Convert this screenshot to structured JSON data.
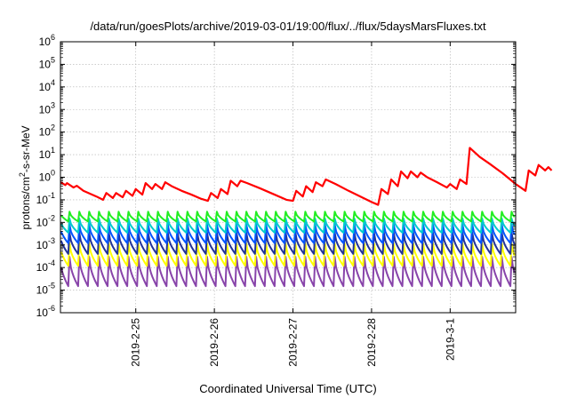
{
  "chart_data": {
    "type": "line",
    "title": "/data/run/goesPlots/archive/2019-03-01/19:00/flux/../flux/5daysMarsFluxes.txt",
    "xlabel": "Coordinated Universal Time (UTC)",
    "ylabel": {
      "prefix": "protons/cm",
      "superscript": "2",
      "suffix": "-s-sr-MeV"
    },
    "yscale": "log",
    "ylim": [
      1e-06,
      1000000.0
    ],
    "y_ticks": [
      {
        "base": "10",
        "exp": "-6",
        "value": 1e-06
      },
      {
        "base": "10",
        "exp": "-5",
        "value": 1e-05
      },
      {
        "base": "10",
        "exp": "-4",
        "value": 0.0001
      },
      {
        "base": "10",
        "exp": "-3",
        "value": 0.001
      },
      {
        "base": "10",
        "exp": "-2",
        "value": 0.01
      },
      {
        "base": "10",
        "exp": "-1",
        "value": 0.1
      },
      {
        "base": "10",
        "exp": "0",
        "value": 1
      },
      {
        "base": "10",
        "exp": "1",
        "value": 10
      },
      {
        "base": "10",
        "exp": "2",
        "value": 100
      },
      {
        "base": "10",
        "exp": "3",
        "value": 1000
      },
      {
        "base": "10",
        "exp": "4",
        "value": 10000
      },
      {
        "base": "10",
        "exp": "5",
        "value": 100000
      },
      {
        "base": "10",
        "exp": "6",
        "value": 1000000
      }
    ],
    "x_range_days": [
      "2019-02-24 01:00",
      "2019-03-01 20:00"
    ],
    "x_ticks": [
      "2019-2-25",
      "2019-2-26",
      "2019-2-27",
      "2019-2-28",
      "2019-3-1"
    ],
    "grid": true,
    "series": [
      {
        "color": "#ff0000",
        "points": [
          [
            "2019-02-24 01:00",
            0.6
          ],
          [
            "2019-02-24 02:30",
            0.45
          ],
          [
            "2019-02-24 03:00",
            0.55
          ],
          [
            "2019-02-24 05:00",
            0.35
          ],
          [
            "2019-02-24 06:00",
            0.42
          ],
          [
            "2019-02-24 08:00",
            0.25
          ],
          [
            "2019-02-24 12:00",
            0.14
          ],
          [
            "2019-02-24 14:00",
            0.1
          ],
          [
            "2019-02-24 15:00",
            0.2
          ],
          [
            "2019-02-24 17:00",
            0.12
          ],
          [
            "2019-02-24 18:00",
            0.2
          ],
          [
            "2019-02-24 20:00",
            0.13
          ],
          [
            "2019-02-24 21:00",
            0.25
          ],
          [
            "2019-02-24 23:00",
            0.15
          ],
          [
            "2019-02-25 00:00",
            0.3
          ],
          [
            "2019-02-25 02:00",
            0.17
          ],
          [
            "2019-02-25 03:00",
            0.55
          ],
          [
            "2019-02-25 05:00",
            0.3
          ],
          [
            "2019-02-25 06:00",
            0.5
          ],
          [
            "2019-02-25 08:00",
            0.3
          ],
          [
            "2019-02-25 09:00",
            0.6
          ],
          [
            "2019-02-25 11:00",
            0.4
          ],
          [
            "2019-02-25 14:00",
            0.25
          ],
          [
            "2019-02-25 17:00",
            0.17
          ],
          [
            "2019-02-25 20:00",
            0.11
          ],
          [
            "2019-02-25 22:00",
            0.09
          ],
          [
            "2019-02-25 23:00",
            0.2
          ],
          [
            "2019-02-26 01:00",
            0.12
          ],
          [
            "2019-02-26 02:00",
            0.3
          ],
          [
            "2019-02-26 04:00",
            0.18
          ],
          [
            "2019-02-26 05:00",
            0.7
          ],
          [
            "2019-02-26 07:00",
            0.4
          ],
          [
            "2019-02-26 08:00",
            0.7
          ],
          [
            "2019-02-26 10:00",
            0.55
          ],
          [
            "2019-02-26 14:00",
            0.32
          ],
          [
            "2019-02-26 18:00",
            0.18
          ],
          [
            "2019-02-26 22:00",
            0.1
          ],
          [
            "2019-02-27 00:00",
            0.09
          ],
          [
            "2019-02-27 01:00",
            0.25
          ],
          [
            "2019-02-27 03:00",
            0.14
          ],
          [
            "2019-02-27 04:00",
            0.4
          ],
          [
            "2019-02-27 06:00",
            0.22
          ],
          [
            "2019-02-27 07:00",
            0.6
          ],
          [
            "2019-02-27 09:00",
            0.4
          ],
          [
            "2019-02-27 10:00",
            0.8
          ],
          [
            "2019-02-27 13:00",
            0.5
          ],
          [
            "2019-02-27 17:00",
            0.25
          ],
          [
            "2019-02-27 21:00",
            0.13
          ],
          [
            "2019-02-28 00:00",
            0.08
          ],
          [
            "2019-02-28 02:00",
            0.06
          ],
          [
            "2019-02-28 03:00",
            0.3
          ],
          [
            "2019-02-28 05:00",
            0.18
          ],
          [
            "2019-02-28 06:00",
            0.8
          ],
          [
            "2019-02-28 08:00",
            0.4
          ],
          [
            "2019-02-28 09:00",
            1.8
          ],
          [
            "2019-02-28 11:00",
            0.9
          ],
          [
            "2019-02-28 12:00",
            1.8
          ],
          [
            "2019-02-28 14:00",
            1.0
          ],
          [
            "2019-02-28 15:00",
            1.6
          ],
          [
            "2019-02-28 17:00",
            1.0
          ],
          [
            "2019-02-28 20:00",
            0.6
          ],
          [
            "2019-02-28 23:00",
            0.35
          ],
          [
            "2019-03-01 00:00",
            0.5
          ],
          [
            "2019-03-01 02:00",
            0.3
          ],
          [
            "2019-03-01 03:00",
            0.8
          ],
          [
            "2019-03-01 05:00",
            0.5
          ],
          [
            "2019-03-01 06:00",
            20.0
          ],
          [
            "2019-03-01 09:00",
            8.0
          ],
          [
            "2019-03-01 12:00",
            4.0
          ],
          [
            "2019-03-01 16:00",
            1.5
          ],
          [
            "2019-03-01 20:00",
            0.5
          ],
          [
            "2019-03-01 23:00",
            0.25
          ],
          [
            "2019-03-02 00:00",
            2.0
          ],
          [
            "2019-03-02 02:00",
            1.2
          ],
          [
            "2019-03-02 03:00",
            3.5
          ],
          [
            "2019-03-02 05:00",
            2.0
          ],
          [
            "2019-03-02 06:00",
            2.8
          ],
          [
            "2019-03-02 07:00",
            2.0
          ]
        ]
      },
      {
        "color": "#22ee22",
        "peaks": 0.03,
        "troughs": 0.011,
        "sawtooth_period_hours": 3
      },
      {
        "color": "#00cccc",
        "peaks": 0.015,
        "troughs": 0.0035,
        "sawtooth_period_hours": 3
      },
      {
        "color": "#0055ff",
        "peaks": 0.008,
        "troughs": 0.0012,
        "sawtooth_period_hours": 3
      },
      {
        "color": "#223399",
        "peaks": 0.0035,
        "troughs": 0.0004,
        "sawtooth_period_hours": 3
      },
      {
        "color": "#ffff00",
        "peaks": 0.0012,
        "troughs": 0.00012,
        "sawtooth_period_hours": 3
      },
      {
        "color": "#8844aa",
        "peaks": 0.0003,
        "troughs": 1.5e-05,
        "sawtooth_period_hours": 3
      }
    ]
  }
}
